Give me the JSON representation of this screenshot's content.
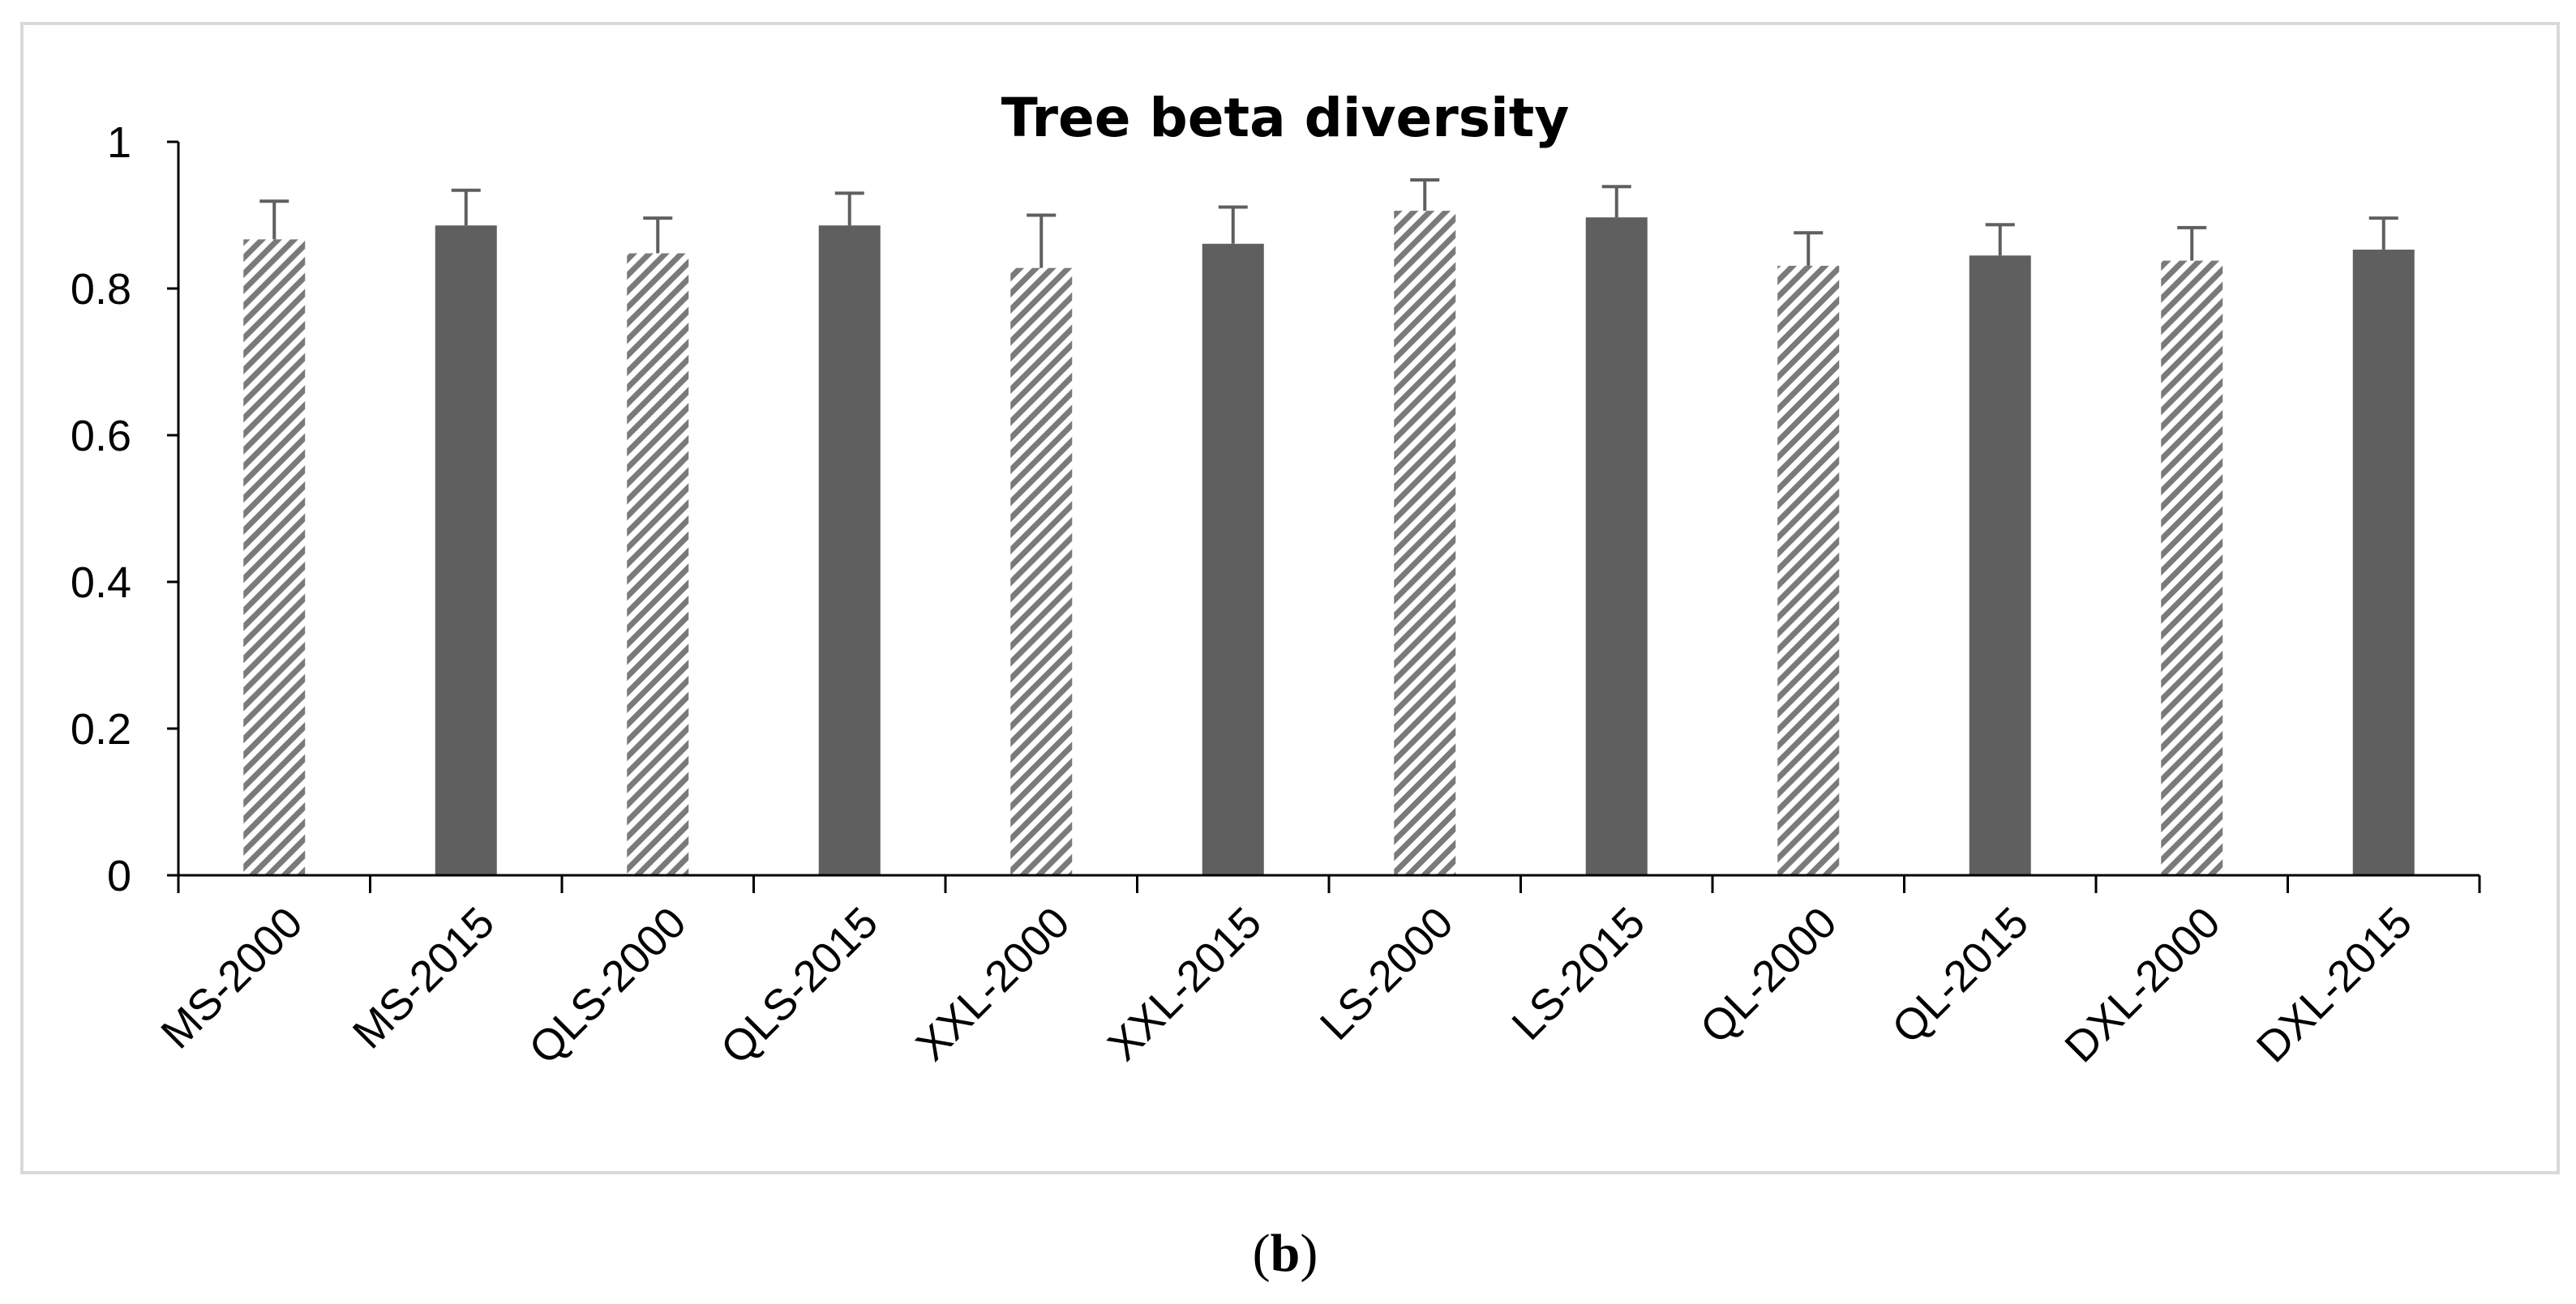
{
  "chart_data": {
    "type": "bar",
    "title": "Tree beta diversity",
    "xlabel": "",
    "ylabel": "",
    "ylim": [
      0,
      1
    ],
    "yticks": [
      0,
      0.2,
      0.4,
      0.6,
      0.8,
      1
    ],
    "ytick_labels": [
      "0",
      "0.2",
      "0.4",
      "0.6",
      "0.8",
      "1"
    ],
    "grid": false,
    "legend": "none",
    "categories": [
      "MS-2000",
      "MS-2015",
      "QLS-2000",
      "QLS-2015",
      "XXL-2000",
      "XXL-2015",
      "LS-2000",
      "LS-2015",
      "QL-2000",
      "QL-2015",
      "DXL-2000",
      "DXL-2015"
    ],
    "values": [
      0.867,
      0.886,
      0.848,
      0.886,
      0.828,
      0.861,
      0.906,
      0.897,
      0.831,
      0.845,
      0.838,
      0.853
    ],
    "error_plus": [
      0.052,
      0.048,
      0.048,
      0.044,
      0.072,
      0.05,
      0.042,
      0.042,
      0.045,
      0.042,
      0.045,
      0.043
    ],
    "styles": [
      "hatched",
      "solid",
      "hatched",
      "solid",
      "hatched",
      "solid",
      "hatched",
      "solid",
      "hatched",
      "solid",
      "hatched",
      "solid"
    ],
    "colors": {
      "solid": "#5f5f5f",
      "hatch_stripe": "#7a7a7a",
      "hatch_background": "#ffffff",
      "error_bar": "#5f5f5f",
      "axis": "#000000",
      "frame": "#d9d9d9"
    }
  },
  "caption": {
    "open": "(",
    "letter": "b",
    "close": ")"
  }
}
